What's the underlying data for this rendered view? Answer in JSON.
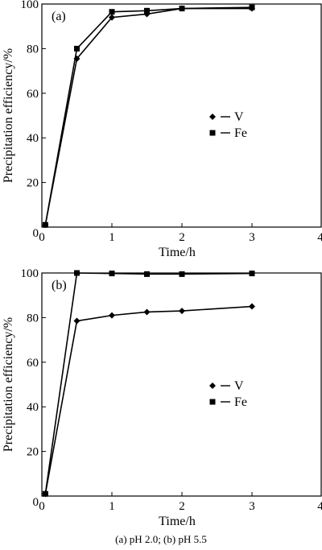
{
  "caption": "(a) pH 2.0; (b) pH 5.5",
  "chart_data": [
    {
      "type": "line",
      "panel_label": "(a)",
      "xlabel": "Time/h",
      "ylabel": "Precipitation efficiency/%",
      "xlim": [
        0,
        4
      ],
      "ylim": [
        0,
        100
      ],
      "xticks": [
        0,
        1,
        2,
        3,
        4
      ],
      "yticks": [
        20,
        40,
        60,
        80,
        100
      ],
      "x_tick_labels": [
        "0",
        "1",
        "2",
        "3",
        "4"
      ],
      "y_tick_labels": [
        "20",
        "40",
        "60",
        "80",
        "100"
      ],
      "legend_position": "right-middle",
      "series": [
        {
          "name": "V",
          "marker": "diamond",
          "x": [
            0.05,
            0.5,
            1,
            1.5,
            2,
            3
          ],
          "y": [
            1,
            75.5,
            94,
            95.5,
            98,
            98
          ]
        },
        {
          "name": "Fe",
          "marker": "square",
          "x": [
            0.05,
            0.5,
            1,
            1.5,
            2,
            3
          ],
          "y": [
            1,
            80,
            96.5,
            97,
            98,
            98.5
          ]
        }
      ]
    },
    {
      "type": "line",
      "panel_label": "(b)",
      "xlabel": "Time/h",
      "ylabel": "Precipitation efficiency/%",
      "xlim": [
        0,
        4
      ],
      "ylim": [
        0,
        100
      ],
      "xticks": [
        0,
        1,
        2,
        3,
        4
      ],
      "yticks": [
        20,
        40,
        60,
        80,
        100
      ],
      "x_tick_labels": [
        "0",
        "1",
        "2",
        "3",
        "4"
      ],
      "y_tick_labels": [
        "20",
        "40",
        "60",
        "80",
        "100"
      ],
      "legend_position": "right-middle",
      "series": [
        {
          "name": "V",
          "marker": "diamond",
          "x": [
            0.05,
            0.5,
            1,
            1.5,
            2,
            3
          ],
          "y": [
            1,
            78.5,
            81,
            82.5,
            83,
            85
          ]
        },
        {
          "name": "Fe",
          "marker": "square",
          "x": [
            0.05,
            0.5,
            1,
            1.5,
            2,
            3
          ],
          "y": [
            1,
            100,
            99.8,
            99.5,
            99.5,
            99.8
          ]
        }
      ]
    }
  ]
}
